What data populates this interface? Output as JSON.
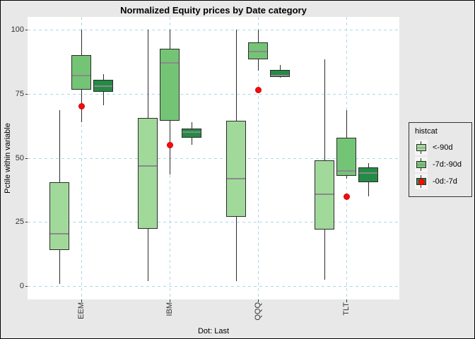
{
  "title": "Normalized Equity prices by Date category",
  "caption": "Dot: Last",
  "y_axis": {
    "title": "Pctile within variable"
  },
  "legend": {
    "title": "histcat",
    "entries": [
      {
        "label": "<-90d",
        "color": "#a1d99b",
        "has_dot": false
      },
      {
        "label": "-7d:-90d",
        "color": "#74c476",
        "has_dot": false
      },
      {
        "label": "-0d:-7d",
        "color": "#238b45",
        "has_dot": true
      }
    ]
  },
  "colors": {
    "figure_bg": "#e8e8e8",
    "panel_bg": "#ffffff",
    "grid": "#add8e6",
    "box_border": "#2b2b2b",
    "median": "#8a8a8a",
    "dot_fill": "#f80b0b",
    "dot_border": "#cc0505",
    "legend_key_bg": "#f5f5f5",
    "axis_text": "#333333"
  },
  "chart_data": {
    "type": "boxplot",
    "title": "Normalized Equity prices by Date category",
    "ylabel": "Pctile within variable",
    "xlabel": "",
    "ylim": [
      0,
      100
    ],
    "y_ticks": [
      0,
      25,
      50,
      75,
      100
    ],
    "categories": [
      "EEM",
      "IBM",
      "QQQ",
      "TLT"
    ],
    "grid": "dashed light-blue, horizontal at y ticks and vertical at categories",
    "legend_position": "right-outside",
    "legend_title": "histcat",
    "series": [
      {
        "name": "<-90d",
        "color": "#a1d99b",
        "boxes": [
          {
            "lo": 1,
            "q1": 14,
            "med": 20.5,
            "q3": 40.5,
            "hi": 68.5
          },
          {
            "lo": 2,
            "q1": 22.5,
            "med": 47,
            "q3": 65.5,
            "hi": 100
          },
          {
            "lo": 2,
            "q1": 27,
            "med": 42,
            "q3": 64.5,
            "hi": 100
          },
          {
            "lo": 2.5,
            "q1": 22,
            "med": 36,
            "q3": 49,
            "hi": 88.5
          }
        ]
      },
      {
        "name": "-7d:-90d",
        "color": "#74c476",
        "boxes": [
          {
            "lo": 64,
            "q1": 76.5,
            "med": 82,
            "q3": 90,
            "hi": 100
          },
          {
            "lo": 43.5,
            "q1": 64.5,
            "med": 87,
            "q3": 92.5,
            "hi": 100
          },
          {
            "lo": 84,
            "q1": 88.5,
            "med": 91.5,
            "q3": 95,
            "hi": 100
          },
          {
            "lo": 42,
            "q1": 43,
            "med": 45,
            "q3": 58,
            "hi": 68.5
          }
        ]
      },
      {
        "name": "-0d:-7d",
        "color": "#238b45",
        "boxes": [
          {
            "lo": 70.5,
            "q1": 75.8,
            "med": 78,
            "q3": 80.5,
            "hi": 82.7
          },
          {
            "lo": 55,
            "q1": 58,
            "med": 60,
            "q3": 61.5,
            "hi": 64
          },
          {
            "lo": 81.3,
            "q1": 81.6,
            "med": 82.2,
            "q3": 84.4,
            "hi": 86.2
          },
          {
            "lo": 35,
            "q1": 40.5,
            "med": 44,
            "q3": 46.3,
            "hi": 48
          }
        ]
      }
    ],
    "dots": {
      "label": "Last",
      "color": "#f80b0b",
      "values": [
        70,
        55,
        76.5,
        35
      ]
    }
  }
}
